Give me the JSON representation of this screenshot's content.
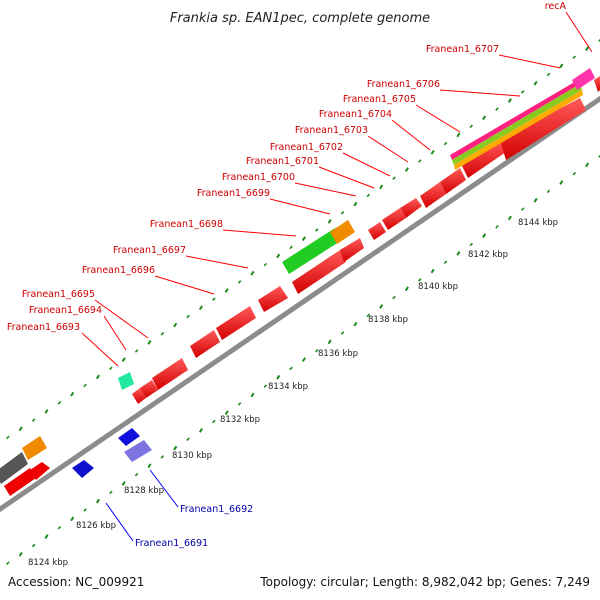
{
  "title": "Frankia sp. EAN1pec, complete genome",
  "footer": {
    "accession": "Accession: NC_009921",
    "summary": "Topology: circular; Length: 8,982,042 bp; Genes: 7,249"
  },
  "colors": {
    "forward_gene": "#ff0000",
    "reverse_gene": "#0000ff",
    "label_forward": "#cc0000",
    "label_reverse": "#0000aa",
    "backbone": "#9a9a9a",
    "tick": "#1a8a1a"
  },
  "scale_ticks": [
    "8124 kbp",
    "8126 kbp",
    "8128 kbp",
    "8130 kbp",
    "8132 kbp",
    "8134 kbp",
    "8136 kbp",
    "8138 kbp",
    "8140 kbp",
    "8142 kbp",
    "8144 kbp"
  ],
  "forward_labels": [
    "Franean1_6693",
    "Franean1_6694",
    "Franean1_6695",
    "Franean1_6696",
    "Franean1_6697",
    "Franean1_6698",
    "Franean1_6699",
    "Franean1_6700",
    "Franean1_6701",
    "Franean1_6702",
    "Franean1_6703",
    "Franean1_6704",
    "Franean1_6705",
    "Franean1_6706",
    "Franean1_6707",
    "recA"
  ],
  "reverse_labels": [
    "Franean1_6692",
    "Franean1_6691"
  ]
}
